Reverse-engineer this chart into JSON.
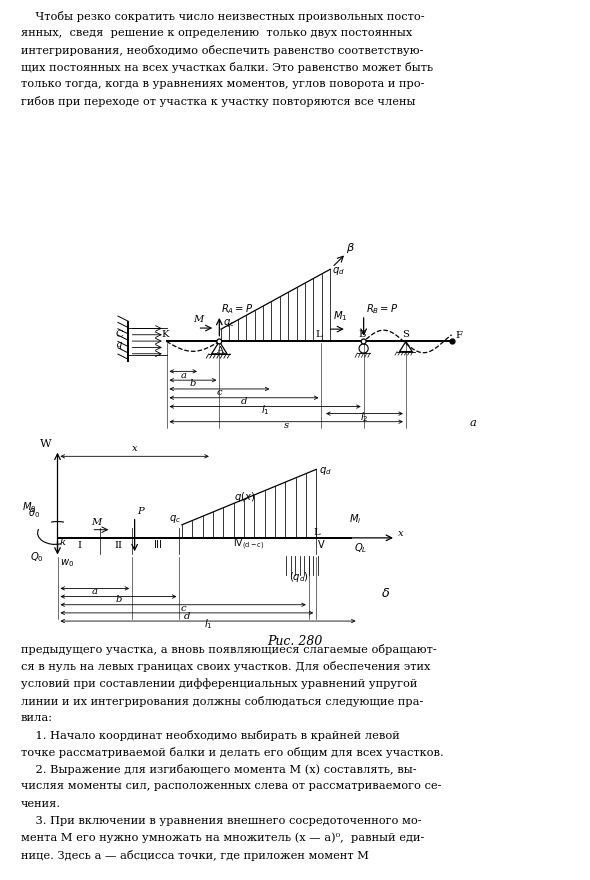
{
  "bg_color": "#ffffff",
  "line_color": "#000000",
  "title": "Рис. 280",
  "fs_text": 8.2,
  "fs_label": 7.2,
  "lines_top": [
    "    Чтобы резко сократить число неизвестных произвольных посто-",
    "янных,  сведя  решение к определению  только двух постоянных",
    "интегрирования, необходимо обеспечить равенство соответствую-",
    "щих постоянных на всех участках балки. Это равенство может быть",
    "только тогда, когда в уравнениях моментов, углов поворота и про-",
    "гибов при переходе от участка к участку повторяются все члены"
  ],
  "lines_bottom": [
    "предыдущего участка, а вновь появляющиеся слагаемые обращают-",
    "ся в нуль на левых границах своих участков. Для обеспечения этих",
    "условий при составлении дифференциальных уравнений упругой",
    "линии и их интегрирования должны соблюдаться следующие пра-",
    "вила:",
    "    1. Начало координат необходимо выбирать в крайней левой",
    "точке рассматриваемой балки и делать его общим для всех участков.",
    "    2. Выражение для изгибающего момента М (х) составлять, вы-",
    "числяя моменты сил, расположенных слева от рассматриваемого се-",
    "чения.",
    "    3. При включении в уравнения внешнего сосредоточенного мо-",
    "мента М его нужно умножать на множитель (х — а)⁰,  равный еди-",
    "нице. Здесь а — абсцисса точки, где приложен момент М"
  ]
}
